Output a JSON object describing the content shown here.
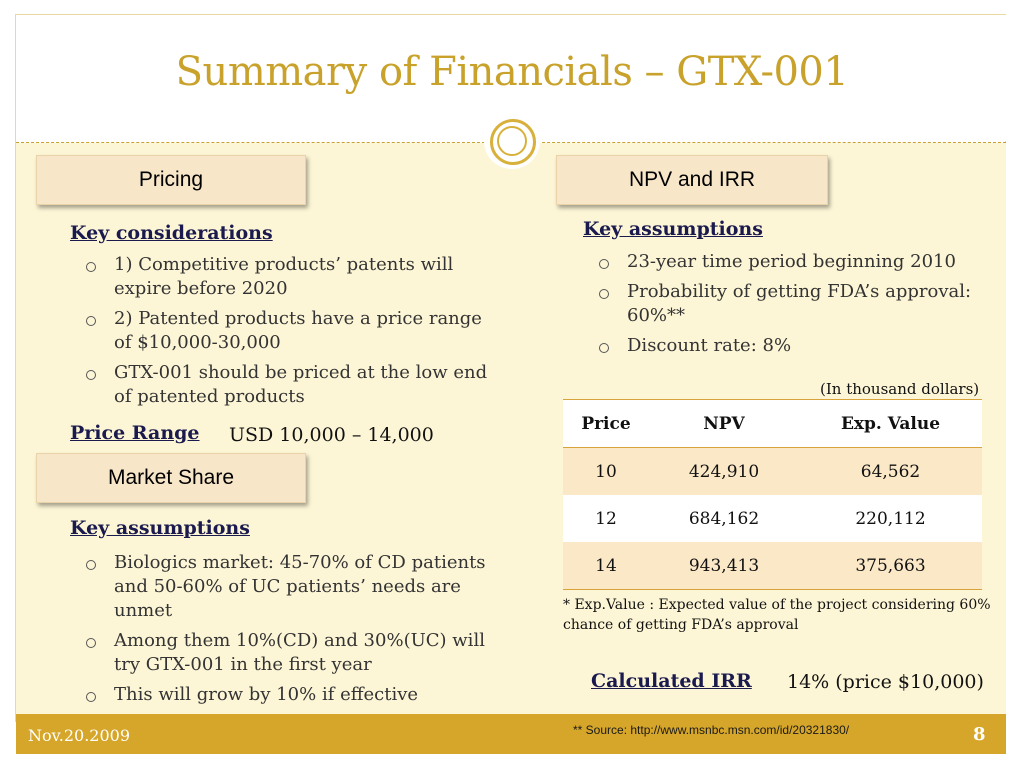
{
  "title": "Summary of Financials – GTX-001",
  "pricing": {
    "box_label": "Pricing",
    "heading": "Key considerations",
    "bullets": [
      "1) Competitive products’ patents will expire before 2020",
      "2) Patented products have a price range of $10,000-30,000",
      "GTX-001 should be priced at the low end of patented products"
    ],
    "price_range_label": "Price Range",
    "price_range_value": "USD 10,000 – 14,000"
  },
  "market_share": {
    "box_label": "Market Share",
    "heading": "Key assumptions",
    "bullets": [
      "Biologics market: 45-70% of CD patients and 50-60% of UC patients’ needs are unmet",
      "Among them 10%(CD) and 30%(UC) will try GTX-001 in the first year",
      "This will grow by 10% if effective"
    ]
  },
  "npv_irr": {
    "box_label": "NPV and IRR",
    "heading": "Key assumptions",
    "bullets": [
      "23-year time period beginning 2010",
      "Probability of getting FDA’s approval: 60%**",
      "Discount rate: 8%"
    ],
    "unit_note": "(In thousand dollars)",
    "table": {
      "headers": [
        "Price",
        "NPV",
        "Exp. Value"
      ],
      "rows": [
        [
          "10",
          "424,910",
          "64,562"
        ],
        [
          "12",
          "684,162",
          "220,112"
        ],
        [
          "14",
          "943,413",
          "375,663"
        ]
      ]
    },
    "footnote": "* Exp.Value : Expected value of the project considering 60% chance of getting FDA’s approval",
    "irr_label": "Calculated IRR",
    "irr_value": "14% (price $10,000)"
  },
  "footer": {
    "date": "Nov.20.2009",
    "source": "** Source: http://www.msnbc.msn.com/id/20321830/",
    "page_number": "8"
  },
  "colors": {
    "title_gold": "#c9a22b",
    "content_background": "#fdf6d6",
    "section_box": "#f8e6c8",
    "footer_bar": "#d6a62a",
    "heading_navy": "#1a1a4e"
  }
}
